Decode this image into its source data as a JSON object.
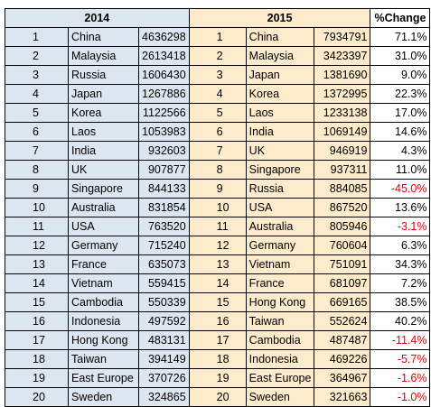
{
  "headers": {
    "y2014": "2014",
    "y2015": "2015",
    "change": "%Change"
  },
  "rows": [
    {
      "r14": "1",
      "c14": "China",
      "v14": "4636298",
      "r15": "1",
      "c15": "China",
      "v15": "7934791",
      "pct": "71.1%",
      "neg": false
    },
    {
      "r14": "2",
      "c14": "Malaysia",
      "v14": "2613418",
      "r15": "2",
      "c15": "Malaysia",
      "v15": "3423397",
      "pct": "31.0%",
      "neg": false
    },
    {
      "r14": "3",
      "c14": "Russia",
      "v14": "1606430",
      "r15": "3",
      "c15": "Japan",
      "v15": "1381690",
      "pct": "9.0%",
      "neg": false
    },
    {
      "r14": "4",
      "c14": "Japan",
      "v14": "1267886",
      "r15": "4",
      "c15": "Korea",
      "v15": "1372995",
      "pct": "22.3%",
      "neg": false
    },
    {
      "r14": "5",
      "c14": "Korea",
      "v14": "1122566",
      "r15": "5",
      "c15": "Laos",
      "v15": "1233138",
      "pct": "17.0%",
      "neg": false
    },
    {
      "r14": "6",
      "c14": "Laos",
      "v14": "1053983",
      "r15": "6",
      "c15": "India",
      "v15": "1069149",
      "pct": "14.6%",
      "neg": false
    },
    {
      "r14": "7",
      "c14": "India",
      "v14": "932603",
      "r15": "7",
      "c15": "UK",
      "v15": "946919",
      "pct": "4.3%",
      "neg": false
    },
    {
      "r14": "8",
      "c14": "UK",
      "v14": "907877",
      "r15": "8",
      "c15": "Singapore",
      "v15": "937311",
      "pct": "11.0%",
      "neg": false
    },
    {
      "r14": "9",
      "c14": "Singapore",
      "v14": "844133",
      "r15": "9",
      "c15": "Russia",
      "v15": "884085",
      "pct": "-45.0%",
      "neg": true
    },
    {
      "r14": "10",
      "c14": "Australia",
      "v14": "831854",
      "r15": "10",
      "c15": "USA",
      "v15": "867520",
      "pct": "13.6%",
      "neg": false
    },
    {
      "r14": "11",
      "c14": "USA",
      "v14": "763520",
      "r15": "11",
      "c15": "Australia",
      "v15": "805946",
      "pct": "-3.1%",
      "neg": true
    },
    {
      "r14": "12",
      "c14": "Germany",
      "v14": "715240",
      "r15": "12",
      "c15": "Germany",
      "v15": "760604",
      "pct": "6.3%",
      "neg": false
    },
    {
      "r14": "13",
      "c14": "France",
      "v14": "635073",
      "r15": "13",
      "c15": "Vietnam",
      "v15": "751091",
      "pct": "34.3%",
      "neg": false
    },
    {
      "r14": "14",
      "c14": "Vietnam",
      "v14": "559415",
      "r15": "14",
      "c15": "France",
      "v15": "681097",
      "pct": "7.2%",
      "neg": false
    },
    {
      "r14": "15",
      "c14": "Cambodia",
      "v14": "550339",
      "r15": "15",
      "c15": "Hong Kong",
      "v15": "669165",
      "pct": "38.5%",
      "neg": false
    },
    {
      "r14": "16",
      "c14": "Indonesia",
      "v14": "497592",
      "r15": "16",
      "c15": "Taiwan",
      "v15": "552624",
      "pct": "40.2%",
      "neg": false
    },
    {
      "r14": "17",
      "c14": "Hong Kong",
      "v14": "483131",
      "r15": "17",
      "c15": "Cambodia",
      "v15": "487487",
      "pct": "-11.4%",
      "neg": true
    },
    {
      "r14": "18",
      "c14": "Taiwan",
      "v14": "394149",
      "r15": "18",
      "c15": "Indonesia",
      "v15": "469226",
      "pct": "-5.7%",
      "neg": true
    },
    {
      "r14": "19",
      "c14": "East Europe",
      "v14": "370726",
      "r15": "19",
      "c15": "East Europe",
      "v15": "364967",
      "pct": "-1.6%",
      "neg": true
    },
    {
      "r14": "20",
      "c14": "Sweden",
      "v14": "324865",
      "r15": "20",
      "c15": "Sweden",
      "v15": "321663",
      "pct": "-1.0%",
      "neg": true
    }
  ],
  "colors": {
    "col2014": "#dce6f1",
    "col2015": "#fdebcc",
    "negative": "#e00000"
  }
}
